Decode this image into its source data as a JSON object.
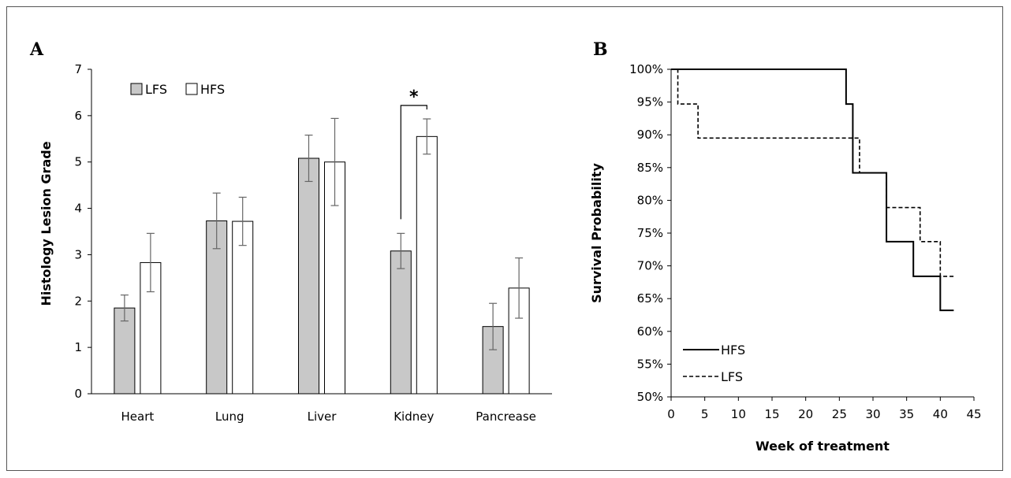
{
  "chart_data": [
    {
      "panel": "A",
      "type": "bar",
      "ylabel": "Histology Lesion Grade",
      "xlabel": "",
      "ylim": [
        0,
        7
      ],
      "yticks": [
        0,
        1,
        2,
        3,
        4,
        5,
        6,
        7
      ],
      "categories": [
        "Heart",
        "Lung",
        "Liver",
        "Kidney",
        "Pancrease"
      ],
      "series": [
        {
          "name": "LFS",
          "color": "#c8c8c8",
          "values": [
            1.85,
            3.73,
            5.08,
            3.08,
            1.45
          ],
          "errors": [
            0.28,
            0.6,
            0.5,
            0.38,
            0.5
          ]
        },
        {
          "name": "HFS",
          "color": "#ffffff",
          "values": [
            2.83,
            3.72,
            5.0,
            5.55,
            2.28
          ],
          "errors": [
            0.63,
            0.52,
            0.94,
            0.38,
            0.65
          ]
        }
      ],
      "significance": {
        "category": "Kidney",
        "marker": "*"
      },
      "legend": "top-left",
      "grid": false
    },
    {
      "panel": "B",
      "type": "line",
      "ylabel": "Survival Probability",
      "xlabel": "Week of treatment",
      "xlim": [
        0,
        45
      ],
      "xticks": [
        0,
        5,
        10,
        15,
        20,
        25,
        30,
        35,
        40,
        45
      ],
      "ylim": [
        50,
        100
      ],
      "yticks": [
        "50%",
        "55%",
        "60%",
        "65%",
        "70%",
        "75%",
        "80%",
        "85%",
        "90%",
        "95%",
        "100%"
      ],
      "series": [
        {
          "name": "HFS",
          "style": "solid",
          "steps": [
            [
              0,
              100
            ],
            [
              26,
              94.7
            ],
            [
              27,
              84.2
            ],
            [
              32,
              73.7
            ],
            [
              36,
              68.4
            ],
            [
              40,
              63.2
            ],
            [
              42,
              63.2
            ]
          ]
        },
        {
          "name": "LFS",
          "style": "dashed",
          "steps": [
            [
              0,
              100
            ],
            [
              1,
              94.7
            ],
            [
              4,
              89.5
            ],
            [
              28,
              84.2
            ],
            [
              32,
              78.9
            ],
            [
              37,
              73.7
            ],
            [
              40,
              68.4
            ],
            [
              42,
              68.4
            ]
          ]
        }
      ],
      "legend": "bottom-left",
      "grid": false
    }
  ]
}
